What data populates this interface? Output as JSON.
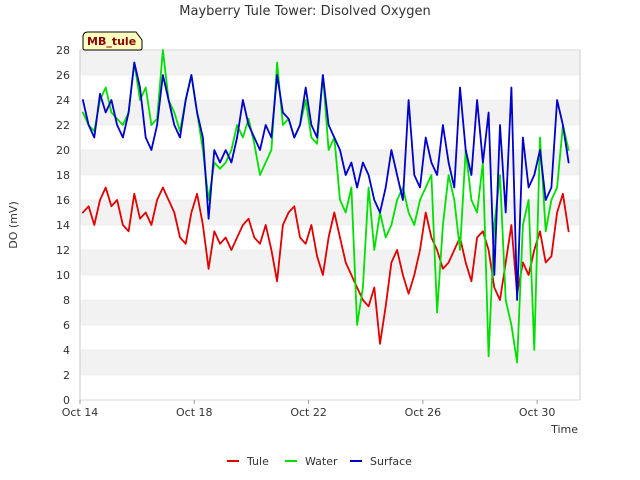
{
  "chart_data": {
    "type": "line",
    "title": "Mayberry Tule Tower: Disolved Oxygen",
    "xlabel": "Time",
    "ylabel": "DO (mV)",
    "badge": "MB_tule",
    "xlim": [
      0,
      17.5
    ],
    "ylim": [
      0,
      28
    ],
    "yticks": [
      0,
      2,
      4,
      6,
      8,
      10,
      12,
      14,
      16,
      18,
      20,
      22,
      24,
      26,
      28
    ],
    "xticks": [
      {
        "day": 0,
        "label": "Oct 14"
      },
      {
        "day": 4,
        "label": "Oct 18"
      },
      {
        "day": 8,
        "label": "Oct 22"
      },
      {
        "day": 12,
        "label": "Oct 26"
      },
      {
        "day": 16,
        "label": "Oct 30"
      }
    ],
    "grid": "horizontal-bands",
    "legend_position": "bottom-center",
    "x_unit": "days since Oct 14",
    "series": [
      {
        "name": "Tule",
        "color": "#e00000",
        "x": [
          0.1,
          0.3,
          0.5,
          0.7,
          0.9,
          1.1,
          1.3,
          1.5,
          1.7,
          1.9,
          2.1,
          2.3,
          2.5,
          2.7,
          2.9,
          3.1,
          3.3,
          3.5,
          3.7,
          3.9,
          4.1,
          4.3,
          4.5,
          4.7,
          4.9,
          5.1,
          5.3,
          5.5,
          5.7,
          5.9,
          6.1,
          6.3,
          6.5,
          6.7,
          6.9,
          7.1,
          7.3,
          7.5,
          7.7,
          7.9,
          8.1,
          8.3,
          8.5,
          8.7,
          8.9,
          9.1,
          9.3,
          9.5,
          9.7,
          9.9,
          10.1,
          10.3,
          10.5,
          10.7,
          10.9,
          11.1,
          11.3,
          11.5,
          11.7,
          11.9,
          12.1,
          12.3,
          12.5,
          12.7,
          12.9,
          13.1,
          13.3,
          13.5,
          13.7,
          13.9,
          14.1,
          14.3,
          14.5,
          14.7,
          14.9,
          15.1,
          15.3,
          15.5,
          15.7,
          15.9,
          16.1,
          16.3,
          16.5,
          16.7,
          16.9,
          17.1
        ],
        "values": [
          15,
          15.5,
          14,
          16,
          17,
          15.5,
          16,
          14,
          13.5,
          16.5,
          14.5,
          15,
          14,
          16,
          17,
          16,
          15,
          13,
          12.5,
          15,
          16.5,
          14,
          10.5,
          13.5,
          12.5,
          13,
          12,
          13,
          14,
          14.5,
          13,
          12.5,
          14,
          12,
          9.5,
          14,
          15,
          15.5,
          13,
          12.5,
          14,
          11.5,
          10,
          13,
          15,
          13,
          11,
          10,
          9,
          8,
          7.5,
          9,
          4.5,
          7.5,
          11,
          12,
          10,
          8.5,
          10,
          12,
          15,
          13,
          12,
          10.5,
          11,
          12,
          13,
          11,
          9.5,
          13,
          13.5,
          12,
          9,
          8,
          11,
          14,
          8.5,
          11,
          10,
          12,
          13.5,
          11,
          11.5,
          15,
          16.5,
          13.5
        ]
      },
      {
        "name": "Water",
        "color": "#00e000",
        "x": [
          0.1,
          0.3,
          0.5,
          0.7,
          0.9,
          1.1,
          1.3,
          1.5,
          1.7,
          1.9,
          2.1,
          2.3,
          2.5,
          2.7,
          2.9,
          3.1,
          3.3,
          3.5,
          3.7,
          3.9,
          4.1,
          4.3,
          4.5,
          4.7,
          4.9,
          5.1,
          5.3,
          5.5,
          5.7,
          5.9,
          6.1,
          6.3,
          6.5,
          6.7,
          6.9,
          7.1,
          7.3,
          7.5,
          7.7,
          7.9,
          8.1,
          8.3,
          8.5,
          8.7,
          8.9,
          9.1,
          9.3,
          9.5,
          9.7,
          9.9,
          10.1,
          10.3,
          10.5,
          10.7,
          10.9,
          11.1,
          11.3,
          11.5,
          11.7,
          11.9,
          12.1,
          12.3,
          12.5,
          12.7,
          12.9,
          13.1,
          13.3,
          13.5,
          13.7,
          13.9,
          14.1,
          14.3,
          14.5,
          14.7,
          14.9,
          15.1,
          15.3,
          15.5,
          15.7,
          15.9,
          16.1,
          16.3,
          16.5,
          16.7,
          16.9,
          17.1
        ],
        "values": [
          23,
          22,
          21.5,
          24,
          25,
          23,
          22.5,
          22,
          23,
          27,
          24,
          25,
          22,
          22.5,
          28,
          24,
          23,
          21.5,
          24,
          26,
          23,
          20,
          16,
          19,
          18.5,
          19,
          20,
          22,
          21,
          22.5,
          20.5,
          18,
          19,
          20,
          27,
          22,
          22.5,
          21,
          22,
          24,
          21,
          20.5,
          26,
          20,
          21,
          16,
          15,
          17,
          6,
          9,
          17,
          12,
          15,
          13,
          14,
          16,
          17,
          15,
          14,
          16,
          17,
          18,
          7,
          14,
          18,
          16,
          12,
          20,
          16,
          15,
          19,
          3.5,
          14,
          18,
          8,
          6,
          3,
          14,
          16,
          4,
          21,
          13.5,
          16,
          17,
          22,
          20
        ]
      },
      {
        "name": "Surface",
        "color": "#0000cc",
        "x": [
          0.1,
          0.3,
          0.5,
          0.7,
          0.9,
          1.1,
          1.3,
          1.5,
          1.7,
          1.9,
          2.1,
          2.3,
          2.5,
          2.7,
          2.9,
          3.1,
          3.3,
          3.5,
          3.7,
          3.9,
          4.1,
          4.3,
          4.5,
          4.7,
          4.9,
          5.1,
          5.3,
          5.5,
          5.7,
          5.9,
          6.1,
          6.3,
          6.5,
          6.7,
          6.9,
          7.1,
          7.3,
          7.5,
          7.7,
          7.9,
          8.1,
          8.3,
          8.5,
          8.7,
          8.9,
          9.1,
          9.3,
          9.5,
          9.7,
          9.9,
          10.1,
          10.3,
          10.5,
          10.7,
          10.9,
          11.1,
          11.3,
          11.5,
          11.7,
          11.9,
          12.1,
          12.3,
          12.5,
          12.7,
          12.9,
          13.1,
          13.3,
          13.5,
          13.7,
          13.9,
          14.1,
          14.3,
          14.5,
          14.7,
          14.9,
          15.1,
          15.3,
          15.5,
          15.7,
          15.9,
          16.1,
          16.3,
          16.5,
          16.7,
          16.9,
          17.1
        ],
        "values": [
          24,
          22,
          21,
          24.5,
          23,
          24,
          22,
          21,
          23,
          27,
          25,
          21,
          20,
          22,
          26,
          24,
          22,
          21,
          24,
          26,
          23,
          21,
          14.5,
          20,
          19,
          20,
          19,
          21,
          24,
          22,
          21,
          20,
          22,
          21,
          26,
          23,
          22.5,
          21,
          22,
          25,
          22,
          21,
          26,
          22,
          21,
          20,
          18,
          19,
          17,
          19,
          18,
          16,
          15,
          17,
          20,
          18,
          16,
          24,
          18,
          17,
          21,
          19,
          18,
          22,
          19,
          17,
          25,
          20,
          18,
          24,
          19,
          23,
          10,
          22,
          15,
          25,
          8,
          21,
          17,
          18,
          20,
          16,
          17,
          24,
          22,
          19
        ]
      }
    ]
  }
}
